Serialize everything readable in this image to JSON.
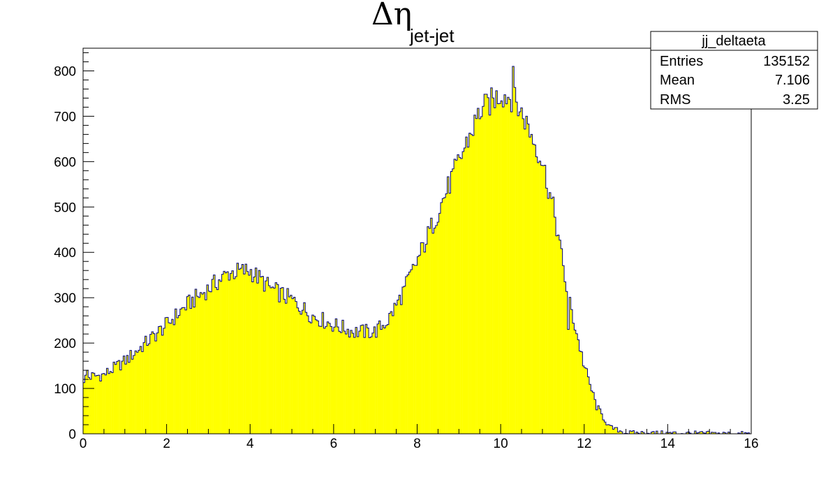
{
  "chart_data": {
    "type": "bar",
    "title": {
      "symbol": "Δη",
      "subscript": "jet-jet"
    },
    "xlabel": "",
    "ylabel": "",
    "xlim": [
      0,
      16
    ],
    "ylim": [
      0,
      850
    ],
    "x_ticks": [
      0,
      2,
      4,
      6,
      8,
      10,
      12,
      14,
      16
    ],
    "y_ticks": [
      0,
      100,
      200,
      300,
      400,
      500,
      600,
      700,
      800
    ],
    "colors": {
      "fill": "#ffff00",
      "line": "#000080",
      "frame": "#000000"
    },
    "stats_box": {
      "name": "jj_deltaeta",
      "rows": [
        {
          "label": "Entries",
          "value": "135152"
        },
        {
          "label": "Mean",
          "value": "7.106"
        },
        {
          "label": "RMS",
          "value": "3.25"
        }
      ]
    },
    "profile": {
      "x": [
        0,
        0.1,
        0.5,
        1,
        1.5,
        2,
        2.5,
        3,
        3.5,
        4,
        4.5,
        5,
        5.5,
        6,
        6.5,
        7,
        7.3,
        7.6,
        8,
        8.5,
        9,
        9.5,
        10,
        10.3,
        10.6,
        11,
        11.3,
        11.6,
        12,
        12.3,
        12.6,
        13,
        16
      ],
      "y": [
        120,
        125,
        130,
        160,
        200,
        240,
        285,
        320,
        355,
        360,
        320,
        295,
        260,
        240,
        225,
        225,
        250,
        300,
        380,
        490,
        600,
        710,
        750,
        740,
        690,
        600,
        480,
        310,
        150,
        60,
        15,
        2,
        0
      ]
    },
    "highlights": [
      {
        "x": 10.3,
        "y": 810
      },
      {
        "x": 11.6,
        "y": 230
      },
      {
        "x": 0.1,
        "y": 140
      }
    ]
  }
}
